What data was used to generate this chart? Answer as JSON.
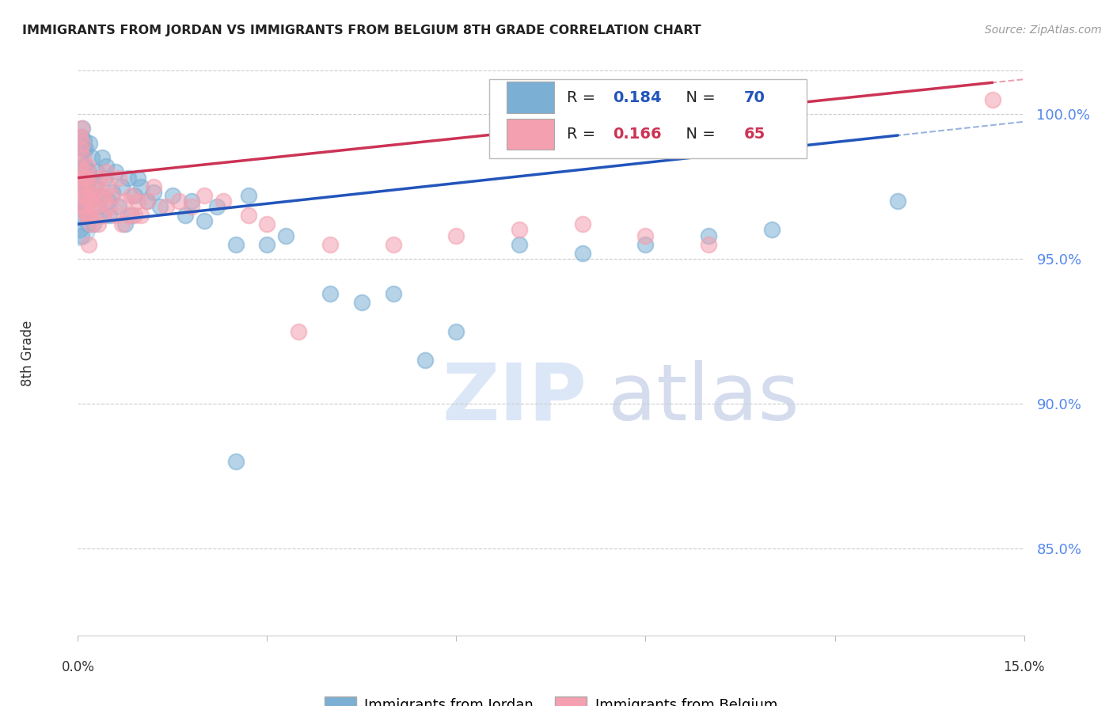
{
  "title": "IMMIGRANTS FROM JORDAN VS IMMIGRANTS FROM BELGIUM 8TH GRADE CORRELATION CHART",
  "source": "Source: ZipAtlas.com",
  "ylabel": "8th Grade",
  "xlim": [
    0.0,
    15.0
  ],
  "ylim": [
    82.0,
    101.5
  ],
  "y_ticks": [
    85.0,
    90.0,
    95.0,
    100.0
  ],
  "y_tick_labels": [
    "85.0%",
    "90.0%",
    "95.0%",
    "100.0%"
  ],
  "jordan_R": 0.184,
  "jordan_N": 70,
  "belgium_R": 0.166,
  "belgium_N": 65,
  "jordan_color": "#7bafd4",
  "belgium_color": "#f4a0b0",
  "jordan_line_color": "#2255BB",
  "belgium_line_color": "#CC3355",
  "background": "#FFFFFF",
  "jordan_x": [
    0.03,
    0.05,
    0.06,
    0.07,
    0.08,
    0.09,
    0.1,
    0.11,
    0.12,
    0.13,
    0.15,
    0.16,
    0.17,
    0.18,
    0.2,
    0.22,
    0.25,
    0.27,
    0.3,
    0.32,
    0.35,
    0.38,
    0.4,
    0.42,
    0.45,
    0.48,
    0.5,
    0.55,
    0.6,
    0.65,
    0.7,
    0.75,
    0.8,
    0.85,
    0.9,
    0.95,
    1.0,
    1.1,
    1.2,
    1.3,
    1.5,
    1.7,
    1.8,
    2.0,
    2.2,
    2.5,
    2.7,
    3.0,
    3.3,
    4.0,
    4.5,
    5.0,
    5.5,
    6.0,
    7.0,
    8.0,
    9.0,
    10.0,
    11.0,
    13.0,
    0.03,
    0.04,
    0.06,
    0.08,
    0.1,
    0.12,
    0.14,
    0.16,
    0.18,
    2.5
  ],
  "jordan_y": [
    98.5,
    99.0,
    99.2,
    99.5,
    98.8,
    99.1,
    97.5,
    98.2,
    96.8,
    97.5,
    97.0,
    96.5,
    98.0,
    99.0,
    97.8,
    98.5,
    96.2,
    97.5,
    98.0,
    96.8,
    97.2,
    98.5,
    96.5,
    97.8,
    98.2,
    97.0,
    96.5,
    97.3,
    98.0,
    96.8,
    97.5,
    96.2,
    97.8,
    96.5,
    97.2,
    97.8,
    97.5,
    97.0,
    97.3,
    96.8,
    97.2,
    96.5,
    97.0,
    96.3,
    96.8,
    95.5,
    97.2,
    95.5,
    95.8,
    93.8,
    93.5,
    93.8,
    91.5,
    92.5,
    95.5,
    95.2,
    95.5,
    95.8,
    96.0,
    97.0,
    96.0,
    96.5,
    95.8,
    97.0,
    98.2,
    98.8,
    97.5,
    96.2,
    97.8,
    88.0
  ],
  "belgium_x": [
    0.03,
    0.05,
    0.06,
    0.07,
    0.08,
    0.09,
    0.1,
    0.11,
    0.12,
    0.13,
    0.15,
    0.16,
    0.17,
    0.18,
    0.2,
    0.22,
    0.25,
    0.27,
    0.3,
    0.32,
    0.35,
    0.38,
    0.4,
    0.42,
    0.45,
    0.48,
    0.5,
    0.55,
    0.6,
    0.65,
    0.7,
    0.75,
    0.8,
    0.85,
    0.9,
    0.95,
    1.0,
    1.1,
    1.2,
    1.4,
    1.6,
    1.8,
    2.0,
    2.3,
    2.7,
    3.0,
    3.5,
    4.0,
    5.0,
    6.0,
    7.0,
    8.0,
    9.0,
    10.0,
    14.5,
    0.03,
    0.05,
    0.07,
    0.09,
    0.11,
    0.13,
    0.15,
    0.17,
    0.19,
    0.21
  ],
  "belgium_y": [
    99.2,
    98.8,
    99.5,
    99.0,
    98.5,
    97.8,
    97.2,
    96.8,
    97.5,
    96.5,
    97.8,
    98.2,
    97.0,
    96.5,
    97.3,
    96.8,
    97.2,
    96.8,
    97.5,
    96.2,
    97.8,
    97.2,
    96.5,
    97.0,
    98.0,
    97.5,
    96.8,
    97.2,
    96.5,
    97.8,
    96.2,
    97.0,
    96.5,
    97.2,
    96.5,
    97.0,
    96.5,
    97.0,
    97.5,
    96.8,
    97.0,
    96.8,
    97.2,
    97.0,
    96.5,
    96.2,
    92.5,
    95.5,
    95.5,
    95.8,
    96.0,
    96.2,
    95.8,
    95.5,
    100.5,
    98.2,
    97.5,
    96.8,
    97.8,
    98.0,
    97.2,
    96.5,
    95.5,
    97.0,
    96.2
  ],
  "jordan_line_x0": 0.0,
  "jordan_line_y0": 96.2,
  "jordan_line_x1": 14.0,
  "jordan_line_y1": 99.5,
  "belgium_line_x0": 0.0,
  "belgium_line_y0": 97.8,
  "belgium_line_x1": 15.0,
  "belgium_line_y1": 101.2,
  "dashed_jordan_x0": 7.0,
  "dashed_jordan_x1": 15.0,
  "dashed_belgium_x0": 7.0,
  "dashed_belgium_x1": 15.0
}
